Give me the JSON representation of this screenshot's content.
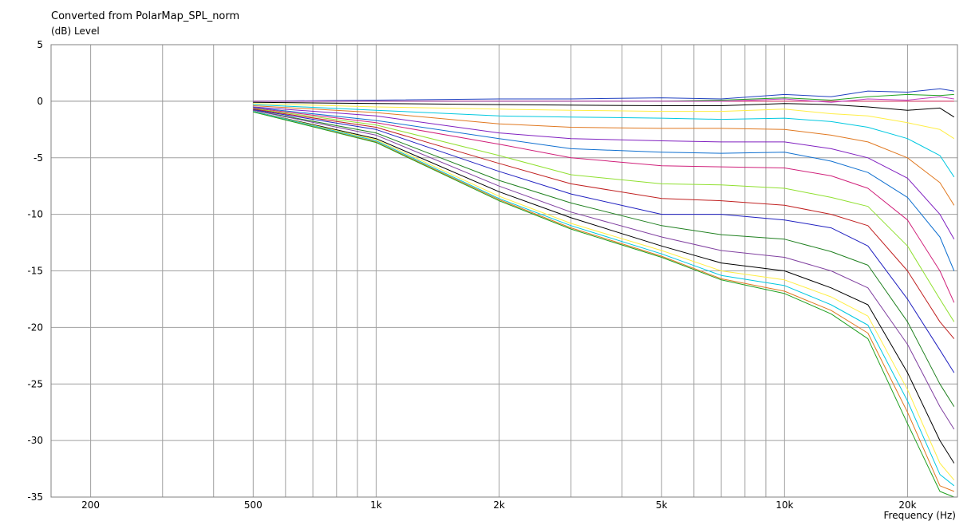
{
  "chart_data": {
    "type": "line",
    "title": "Converted from PolarMap_SPL_norm",
    "ylabel": "(dB)  Level",
    "xlabel": "Frequency  (Hz)",
    "x_scale": "log",
    "xlim": [
      160,
      26500
    ],
    "ylim": [
      -35,
      5
    ],
    "x_ticks": [
      {
        "value": 200,
        "label": "200"
      },
      {
        "value": 500,
        "label": "500"
      },
      {
        "value": 1000,
        "label": "1k"
      },
      {
        "value": 2000,
        "label": "2k"
      },
      {
        "value": 5000,
        "label": "5k"
      },
      {
        "value": 10000,
        "label": "10k"
      },
      {
        "value": 20000,
        "label": "20k"
      }
    ],
    "y_ticks": [
      5,
      0,
      -5,
      -10,
      -15,
      -20,
      -25,
      -30,
      -35
    ],
    "grid": true,
    "x": [
      500,
      1000,
      2000,
      3000,
      5000,
      7000,
      10000,
      13000,
      16000,
      20000,
      24000,
      26000
    ],
    "series": [
      {
        "color": "#e03060",
        "values": [
          0.0,
          0.0,
          0.0,
          0.0,
          0.0,
          0.0,
          0.0,
          0.0,
          0.0,
          0.0,
          0.0,
          0.0
        ]
      },
      {
        "color": "#2040c0",
        "values": [
          0.0,
          0.1,
          0.2,
          0.2,
          0.3,
          0.2,
          0.6,
          0.4,
          0.9,
          0.8,
          1.1,
          0.9
        ]
      },
      {
        "color": "#20a020",
        "values": [
          0.0,
          0.0,
          0.0,
          0.0,
          0.0,
          0.1,
          0.3,
          0.1,
          0.4,
          0.6,
          0.5,
          0.6
        ]
      },
      {
        "color": "#c040c0",
        "values": [
          0.0,
          0.0,
          0.0,
          0.0,
          0.0,
          0.0,
          0.2,
          -0.1,
          0.2,
          0.1,
          0.4,
          0.2
        ]
      },
      {
        "color": "#000000",
        "values": [
          -0.1,
          -0.2,
          -0.3,
          -0.35,
          -0.4,
          -0.4,
          -0.2,
          -0.3,
          -0.5,
          -0.8,
          -0.6,
          -1.4
        ]
      },
      {
        "color": "#ffee44",
        "values": [
          -0.2,
          -0.5,
          -0.7,
          -0.8,
          -0.9,
          -0.9,
          -0.7,
          -1.1,
          -1.3,
          -1.9,
          -2.5,
          -3.3
        ]
      },
      {
        "color": "#00c8e0",
        "values": [
          -0.3,
          -0.8,
          -1.3,
          -1.4,
          -1.5,
          -1.6,
          -1.5,
          -1.8,
          -2.3,
          -3.3,
          -4.8,
          -6.7
        ]
      },
      {
        "color": "#e07820",
        "values": [
          -0.4,
          -1.0,
          -2.0,
          -2.3,
          -2.4,
          -2.4,
          -2.5,
          -3.0,
          -3.6,
          -5.0,
          -7.2,
          -9.2
        ]
      },
      {
        "color": "#8020c0",
        "values": [
          -0.5,
          -1.3,
          -2.8,
          -3.3,
          -3.5,
          -3.6,
          -3.6,
          -4.2,
          -5.0,
          -6.8,
          -10.0,
          -12.2
        ]
      },
      {
        "color": "#1070d0",
        "values": [
          -0.55,
          -1.7,
          -3.3,
          -4.2,
          -4.5,
          -4.6,
          -4.5,
          -5.3,
          -6.3,
          -8.5,
          -12.0,
          -15.0
        ]
      },
      {
        "color": "#d0207a",
        "values": [
          -0.6,
          -1.9,
          -3.8,
          -5.0,
          -5.7,
          -5.8,
          -5.9,
          -6.6,
          -7.7,
          -10.5,
          -15.0,
          -17.8
        ]
      },
      {
        "color": "#90e030",
        "values": [
          -0.65,
          -2.1,
          -4.8,
          -6.5,
          -7.3,
          -7.4,
          -7.7,
          -8.5,
          -9.3,
          -12.8,
          -17.5,
          -19.5
        ]
      },
      {
        "color": "#c02020",
        "values": [
          -0.7,
          -2.3,
          -5.5,
          -7.3,
          -8.6,
          -8.8,
          -9.2,
          -10.0,
          -11.0,
          -15.0,
          -19.5,
          -21.0
        ]
      },
      {
        "color": "#2020c0",
        "values": [
          -0.75,
          -2.5,
          -6.2,
          -8.2,
          -10.0,
          -10.0,
          -10.5,
          -11.2,
          -12.8,
          -17.5,
          -22.0,
          -24.0
        ]
      },
      {
        "color": "#208020",
        "values": [
          -0.8,
          -2.8,
          -7.0,
          -9.0,
          -11.0,
          -11.8,
          -12.2,
          -13.3,
          -14.5,
          -19.5,
          -25.0,
          -27.0
        ]
      },
      {
        "color": "#8040a0",
        "values": [
          -0.8,
          -3.0,
          -7.5,
          -9.8,
          -12.0,
          -13.2,
          -13.8,
          -15.0,
          -16.5,
          -21.5,
          -27.0,
          -29.0
        ]
      },
      {
        "color": "#000000",
        "values": [
          -0.9,
          -3.3,
          -8.0,
          -10.3,
          -12.8,
          -14.3,
          -15.0,
          -16.5,
          -18.0,
          -24.0,
          -30.0,
          -32.0
        ]
      },
      {
        "color": "#ffee44",
        "values": [
          -0.9,
          -3.4,
          -8.4,
          -10.8,
          -13.2,
          -15.0,
          -15.8,
          -17.3,
          -19.0,
          -25.5,
          -32.0,
          -33.5
        ]
      },
      {
        "color": "#00c8e0",
        "values": [
          -0.9,
          -3.5,
          -8.6,
          -11.0,
          -13.5,
          -15.4,
          -16.3,
          -18.0,
          -19.8,
          -26.5,
          -33.0,
          -34.0
        ]
      },
      {
        "color": "#e07820",
        "values": [
          -0.95,
          -3.6,
          -8.7,
          -11.2,
          -13.7,
          -15.7,
          -16.8,
          -18.5,
          -20.5,
          -27.5,
          -34.0,
          -34.5
        ]
      },
      {
        "color": "#20a020",
        "values": [
          -0.95,
          -3.65,
          -8.8,
          -11.3,
          -13.8,
          -15.8,
          -17.0,
          -18.8,
          -21.0,
          -28.5,
          -34.5,
          -35.0
        ]
      }
    ]
  }
}
